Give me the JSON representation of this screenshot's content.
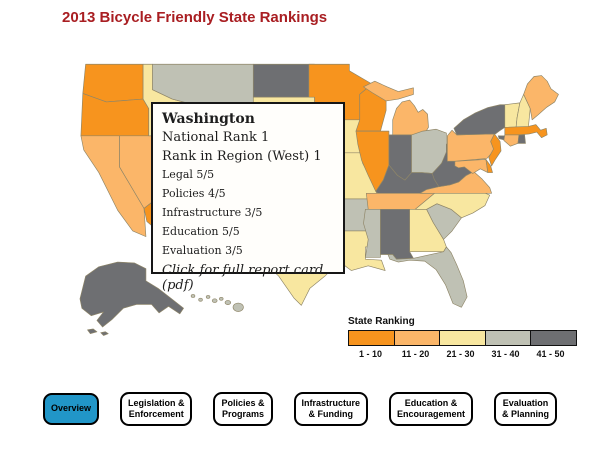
{
  "title": "2013 Bicycle Friendly State Rankings",
  "title_color": "#A91E22",
  "tooltip": {
    "state": "Washington",
    "lines": [
      "National Rank 1",
      "Rank in Region (West) 1"
    ],
    "scores": [
      "Legal 5/5",
      "Policies 4/5",
      "Infrastructure 3/5",
      "Education 5/5",
      "Evaluation 3/5"
    ],
    "link": "Click for full report card (pdf)"
  },
  "legend": {
    "title": "State Ranking",
    "buckets": [
      {
        "label": "1 - 10",
        "color": "#F7941E"
      },
      {
        "label": "11 - 20",
        "color": "#FBB669"
      },
      {
        "label": "21 - 30",
        "color": "#F8E7A0"
      },
      {
        "label": "31 - 40",
        "color": "#BFC1B4"
      },
      {
        "label": "41 - 50",
        "color": "#6E6F72"
      }
    ]
  },
  "nav": {
    "active_color": "#2196C8",
    "buttons": [
      {
        "label": "Overview",
        "active": true
      },
      {
        "label": "Legislation &\nEnforcement",
        "active": false
      },
      {
        "label": "Policies &\nPrograms",
        "active": false
      },
      {
        "label": "Infrastructure\n& Funding",
        "active": false
      },
      {
        "label": "Education &\nEncouragement",
        "active": false
      },
      {
        "label": "Evaluation\n& Planning",
        "active": false
      }
    ]
  },
  "chart_data": {
    "type": "heatmap",
    "subtype": "us-state-choropleth",
    "title": "2013 Bicycle Friendly State Rankings",
    "legend_title": "State Ranking",
    "legend_position": "bottom-right",
    "buckets": {
      "b1": "1 - 10",
      "b2": "11 - 20",
      "b3": "21 - 30",
      "b4": "31 - 40",
      "b5": "41 - 50"
    },
    "bucket_colors": {
      "b1": "#F7941E",
      "b2": "#FBB669",
      "b3": "#F8E7A0",
      "b4": "#BFC1B4",
      "b5": "#6E6F72"
    },
    "state_buckets": {
      "WA": "b1",
      "OR": "b1",
      "CA": "b2",
      "NV": "b2",
      "ID": "b3",
      "MT": "b4",
      "AZ": "b1",
      "ND": "b5",
      "MN": "b1",
      "WI": "b1",
      "MI": "b2",
      "IA": "b3",
      "IL": "b1",
      "MO": "b3",
      "AR": "b4",
      "LA": "b3",
      "TX": "b3",
      "IN": "b5",
      "OH": "b4",
      "KY": "b5",
      "WV": "b5",
      "PA": "b2",
      "NY": "b5",
      "VT": "b3",
      "NH": "b3",
      "ME": "b2",
      "MA": "b1",
      "CT": "b2",
      "RI": "b5",
      "NJ": "b1",
      "DE": "b1",
      "MD": "b2",
      "VA": "b2",
      "NC": "b3",
      "TN": "b2",
      "SC": "b4",
      "GA": "b3",
      "AL": "b5",
      "MS": "b4",
      "FL": "b4",
      "AK": "b5",
      "HI": "b4"
    },
    "selected_state": {
      "name": "Washington",
      "national_rank": 1,
      "region": "West",
      "region_rank": 1,
      "legal": "5/5",
      "policies": "4/5",
      "infrastructure": "3/5",
      "education": "5/5",
      "evaluation": "3/5"
    }
  }
}
